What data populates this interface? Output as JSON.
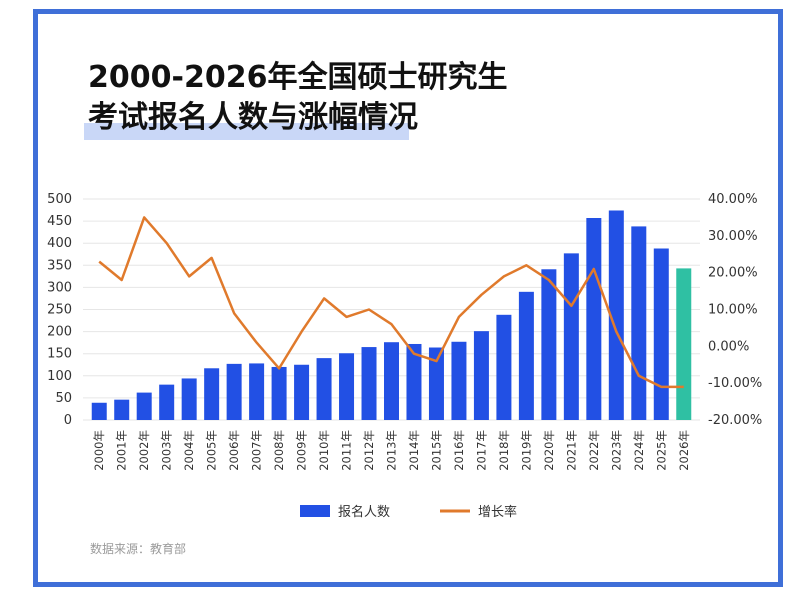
{
  "title_lines": [
    "2000-2026年全国硕士研究生",
    "考试报名人数与涨幅情况"
  ],
  "source": "数据来源：教育部",
  "colors": {
    "bar": "#2250e4",
    "bar_highlight": "#2fc0a3",
    "line": "#e07a2c",
    "frame": "#3f6fd8",
    "highlight_band": "#c9d7f7"
  },
  "chart_data": {
    "type": "bar",
    "categories": [
      "2000年",
      "2001年",
      "2002年",
      "2003年",
      "2004年",
      "2005年",
      "2006年",
      "2007年",
      "2008年",
      "2009年",
      "2010年",
      "2011年",
      "2012年",
      "2013年",
      "2014年",
      "2015年",
      "2016年",
      "2017年",
      "2018年",
      "2019年",
      "2020年",
      "2021年",
      "2022年",
      "2023年",
      "2024年",
      "2025年",
      "2026年"
    ],
    "series": [
      {
        "name": "报名人数",
        "type": "bar",
        "axis": "left",
        "values": [
          39,
          46,
          62,
          80,
          94,
          117,
          127,
          128,
          120,
          125,
          140,
          151,
          165,
          176,
          172,
          164,
          177,
          201,
          238,
          290,
          341,
          377,
          457,
          474,
          438,
          388,
          343
        ]
      },
      {
        "name": "增长率",
        "type": "line",
        "axis": "right",
        "values": [
          23,
          18,
          35,
          28,
          19,
          24,
          9,
          1,
          -6,
          4,
          13,
          8,
          10,
          6,
          -2,
          -4,
          8,
          14,
          19,
          22,
          18,
          11,
          21,
          4,
          -8,
          -11,
          -11
        ]
      }
    ],
    "left_ticks": [
      "500",
      "450",
      "400",
      "350",
      "300",
      "250",
      "200",
      "150",
      "100",
      "50",
      "0"
    ],
    "right_ticks": [
      "40.00%",
      "30.00%",
      "20.00%",
      "10.00%",
      "0.00%",
      "-10.00%",
      "-20.00%"
    ],
    "ylim_left": [
      0,
      500
    ],
    "ylim_right": [
      -20,
      40
    ],
    "grid": true,
    "legend_position": "bottom-center",
    "highlight_last_bar": true
  }
}
